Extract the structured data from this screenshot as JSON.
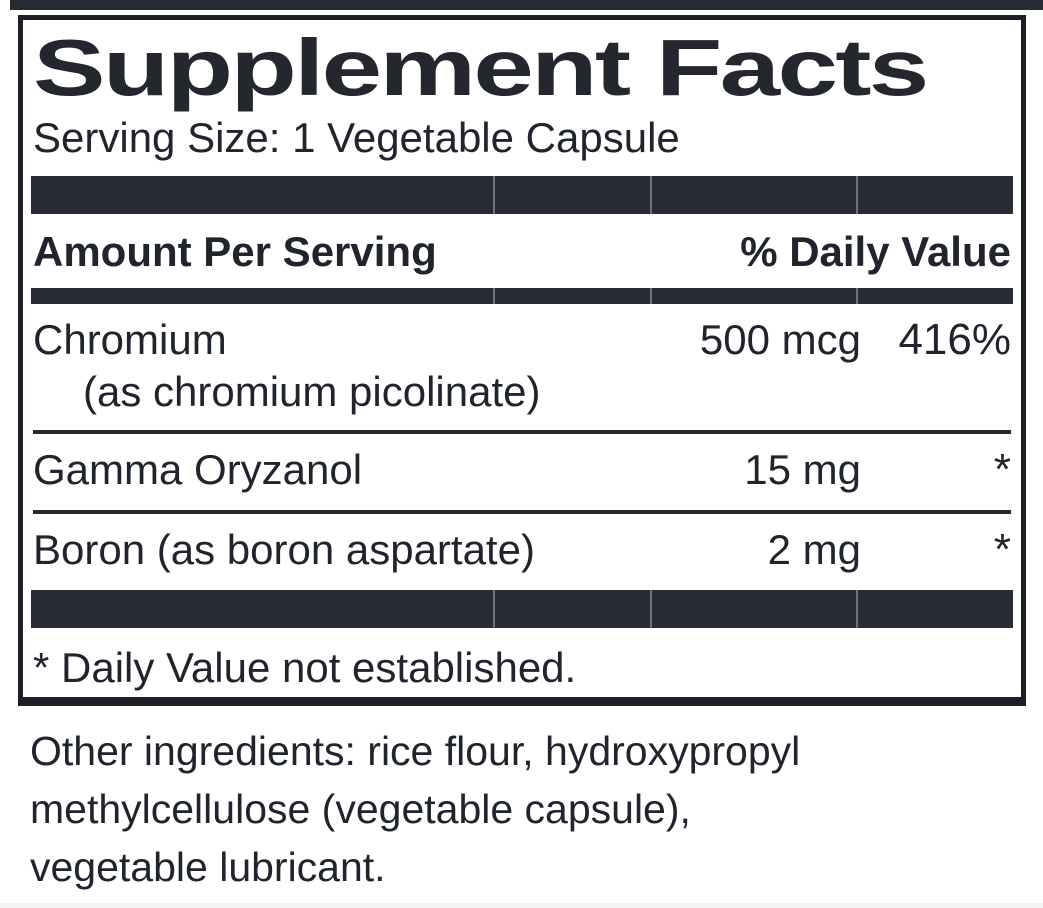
{
  "label": {
    "title": "Supplement Facts",
    "serving_size": "Serving Size: 1 Vegetable Capsule",
    "header": {
      "amount_per_serving": "Amount Per Serving",
      "daily_value": "% Daily Value"
    },
    "rows": [
      {
        "name": "Chromium",
        "sub": "(as chromium picolinate)",
        "amount": "500 mcg",
        "dv": "416%"
      },
      {
        "name": "Gamma Oryzanol",
        "amount": "15 mg",
        "dv": "*"
      },
      {
        "name": "Boron (as boron aspartate)",
        "amount": "2 mg",
        "dv": "*"
      }
    ],
    "footnote": "* Daily Value not established.",
    "other_ingredients": "Other ingredients: rice flour, hydroxypropyl\nmethylcellulose (vegetable capsule),\nvegetable lubricant."
  },
  "colors": {
    "bar": "#272b33",
    "border": "#1c1f26",
    "text": "#20242c",
    "background": "#ffffff",
    "bottom_edge_strip": "#f3f3f5"
  }
}
